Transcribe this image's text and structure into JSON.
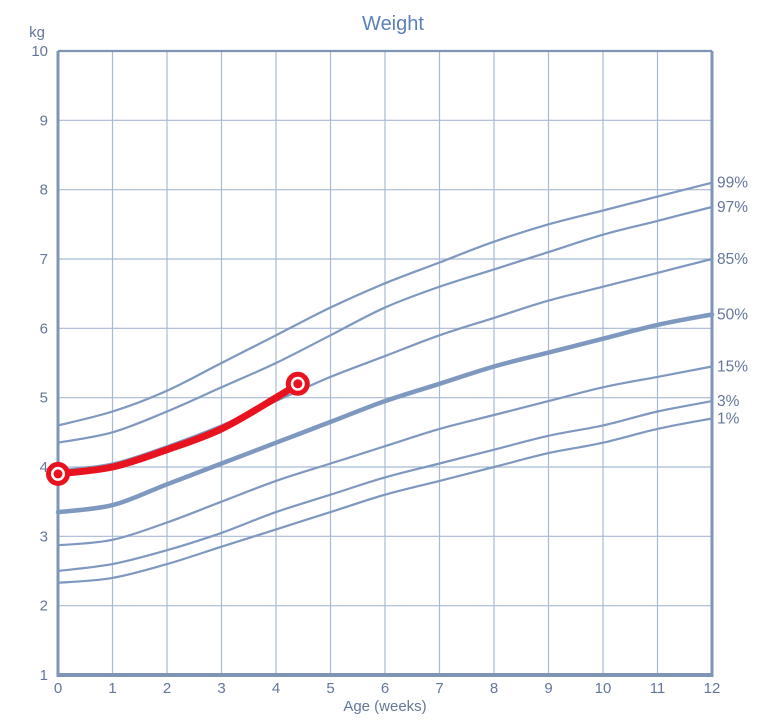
{
  "chart_data": {
    "type": "line",
    "title": "Weight",
    "xlabel": "Age (weeks)",
    "ylabel": "kg",
    "xlim": [
      0,
      12
    ],
    "ylim": [
      1,
      10
    ],
    "x_ticks": [
      0,
      1,
      2,
      3,
      4,
      5,
      6,
      7,
      8,
      9,
      10,
      11,
      12
    ],
    "y_ticks": [
      1,
      2,
      3,
      4,
      5,
      6,
      7,
      8,
      9,
      10
    ],
    "grid": true,
    "legend_position": "right-edge-labels",
    "x": [
      0,
      1,
      2,
      3,
      4,
      5,
      6,
      7,
      8,
      9,
      10,
      11,
      12
    ],
    "percentile_series": [
      {
        "name": "99%",
        "values": [
          4.6,
          4.8,
          5.1,
          5.5,
          5.9,
          6.3,
          6.65,
          6.95,
          7.25,
          7.5,
          7.7,
          7.9,
          8.1
        ],
        "emphasis": false
      },
      {
        "name": "97%",
        "values": [
          4.35,
          4.5,
          4.8,
          5.15,
          5.5,
          5.9,
          6.3,
          6.6,
          6.85,
          7.1,
          7.35,
          7.55,
          7.75
        ],
        "emphasis": false
      },
      {
        "name": "85%",
        "values": [
          3.95,
          4.05,
          4.3,
          4.6,
          4.95,
          5.3,
          5.6,
          5.9,
          6.15,
          6.4,
          6.6,
          6.8,
          7.0
        ],
        "emphasis": false
      },
      {
        "name": "50%",
        "values": [
          3.35,
          3.45,
          3.75,
          4.05,
          4.35,
          4.65,
          4.95,
          5.2,
          5.45,
          5.65,
          5.85,
          6.05,
          6.2
        ],
        "emphasis": true
      },
      {
        "name": "15%",
        "values": [
          2.87,
          2.95,
          3.2,
          3.5,
          3.8,
          4.05,
          4.3,
          4.55,
          4.75,
          4.95,
          5.15,
          5.3,
          5.45
        ],
        "emphasis": false
      },
      {
        "name": "3%",
        "values": [
          2.5,
          2.6,
          2.8,
          3.05,
          3.35,
          3.6,
          3.85,
          4.05,
          4.25,
          4.45,
          4.6,
          4.8,
          4.95
        ],
        "emphasis": false
      },
      {
        "name": "1%",
        "values": [
          2.33,
          2.4,
          2.6,
          2.85,
          3.1,
          3.35,
          3.6,
          3.8,
          4.0,
          4.2,
          4.35,
          4.55,
          4.7
        ],
        "emphasis": false
      }
    ],
    "patient_series": {
      "name": "patient-weight",
      "points": [
        [
          0,
          3.9
        ],
        [
          1,
          4.0
        ],
        [
          2,
          4.25
        ],
        [
          3,
          4.55
        ],
        [
          4,
          5.0
        ],
        [
          4.4,
          5.2
        ]
      ],
      "markers": [
        [
          0,
          3.9
        ],
        [
          4.4,
          5.2
        ]
      ]
    },
    "colors": {
      "background": "#ffffff",
      "title": "#5b81b7",
      "axis_text": "#64779b",
      "grid": "#a8bad3",
      "frame": "#7e95b8",
      "percentile_curve": "#7e98bf",
      "patient_line": "#e8131f",
      "marker_fill": "#ffffff"
    }
  }
}
